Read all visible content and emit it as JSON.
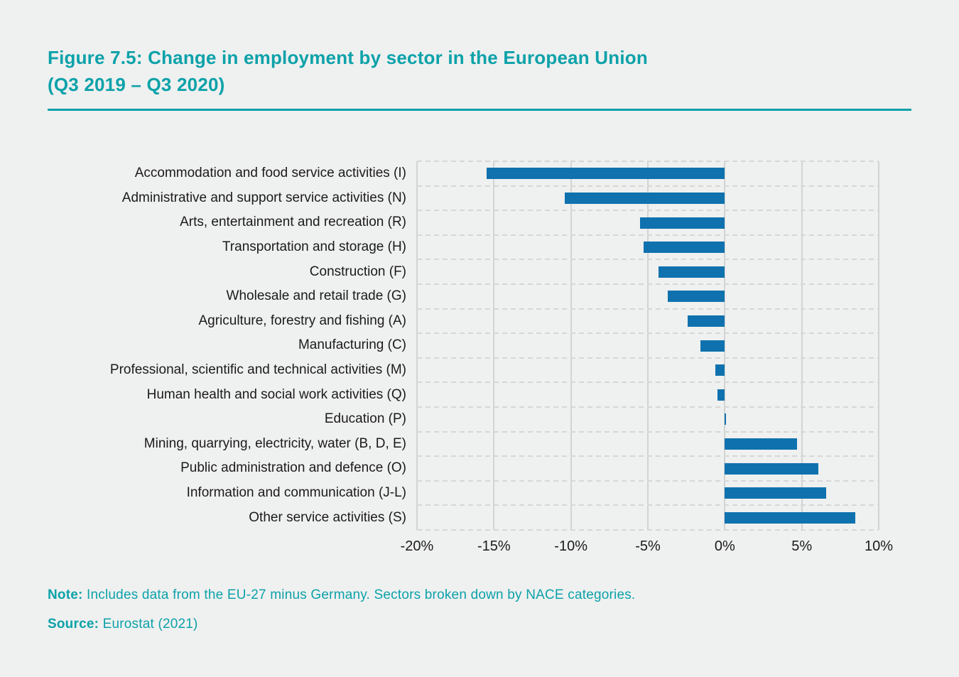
{
  "figure": {
    "title_line1": "Figure 7.5: Change in employment by sector in the European Union",
    "title_line2": "(Q3 2019 – Q3 2020)"
  },
  "chart_data": {
    "type": "bar",
    "orientation": "horizontal",
    "title": "Change in employment by sector in the European Union (Q3 2019 – Q3 2020)",
    "xlabel": "",
    "ylabel": "",
    "xlim": [
      -20,
      10
    ],
    "x_tick_labels": [
      "-20%",
      "-15%",
      "-10%",
      "-5%",
      "0%",
      "5%",
      "10%"
    ],
    "x_tick_values": [
      -20,
      -15,
      -10,
      -5,
      0,
      5,
      10
    ],
    "grid": "solid vertical gridlines at ticks, dashed horizontal row separators",
    "legend": "none",
    "categories": [
      "Accommodation and food service activities (I)",
      "Administrative and support service activities (N)",
      "Arts, entertainment and recreation (R)",
      "Transportation and storage (H)",
      "Construction (F)",
      "Wholesale and retail trade (G)",
      "Agriculture, forestry and fishing (A)",
      "Manufacturing (C)",
      "Professional, scientific and technical activities (M)",
      "Human health and social work activities (Q)",
      "Education (P)",
      "Mining, quarrying, electricity, water (B, D, E)",
      "Public administration and defence (O)",
      "Information and communication (J-L)",
      "Other service activities (S)"
    ],
    "values": [
      -15.5,
      -10.4,
      -5.5,
      -5.3,
      -4.3,
      -3.7,
      -2.4,
      -1.6,
      -0.6,
      -0.5,
      0.1,
      4.7,
      6.1,
      6.6,
      8.5
    ],
    "unit": "%"
  },
  "note": {
    "label": "Note:",
    "text": "Includes data from the EU-27 minus Germany. Sectors broken down by NACE categories."
  },
  "source": {
    "label": "Source:",
    "text": "Eurostat (2021)"
  },
  "colors": {
    "accent_teal": "#0CA2A9",
    "bar_blue": "#0F72AE",
    "background": "#EFF0F0",
    "text_dark": "#1B1B19",
    "grid_solid": "#D2D4D3",
    "grid_dash": "#D6D7D5"
  }
}
